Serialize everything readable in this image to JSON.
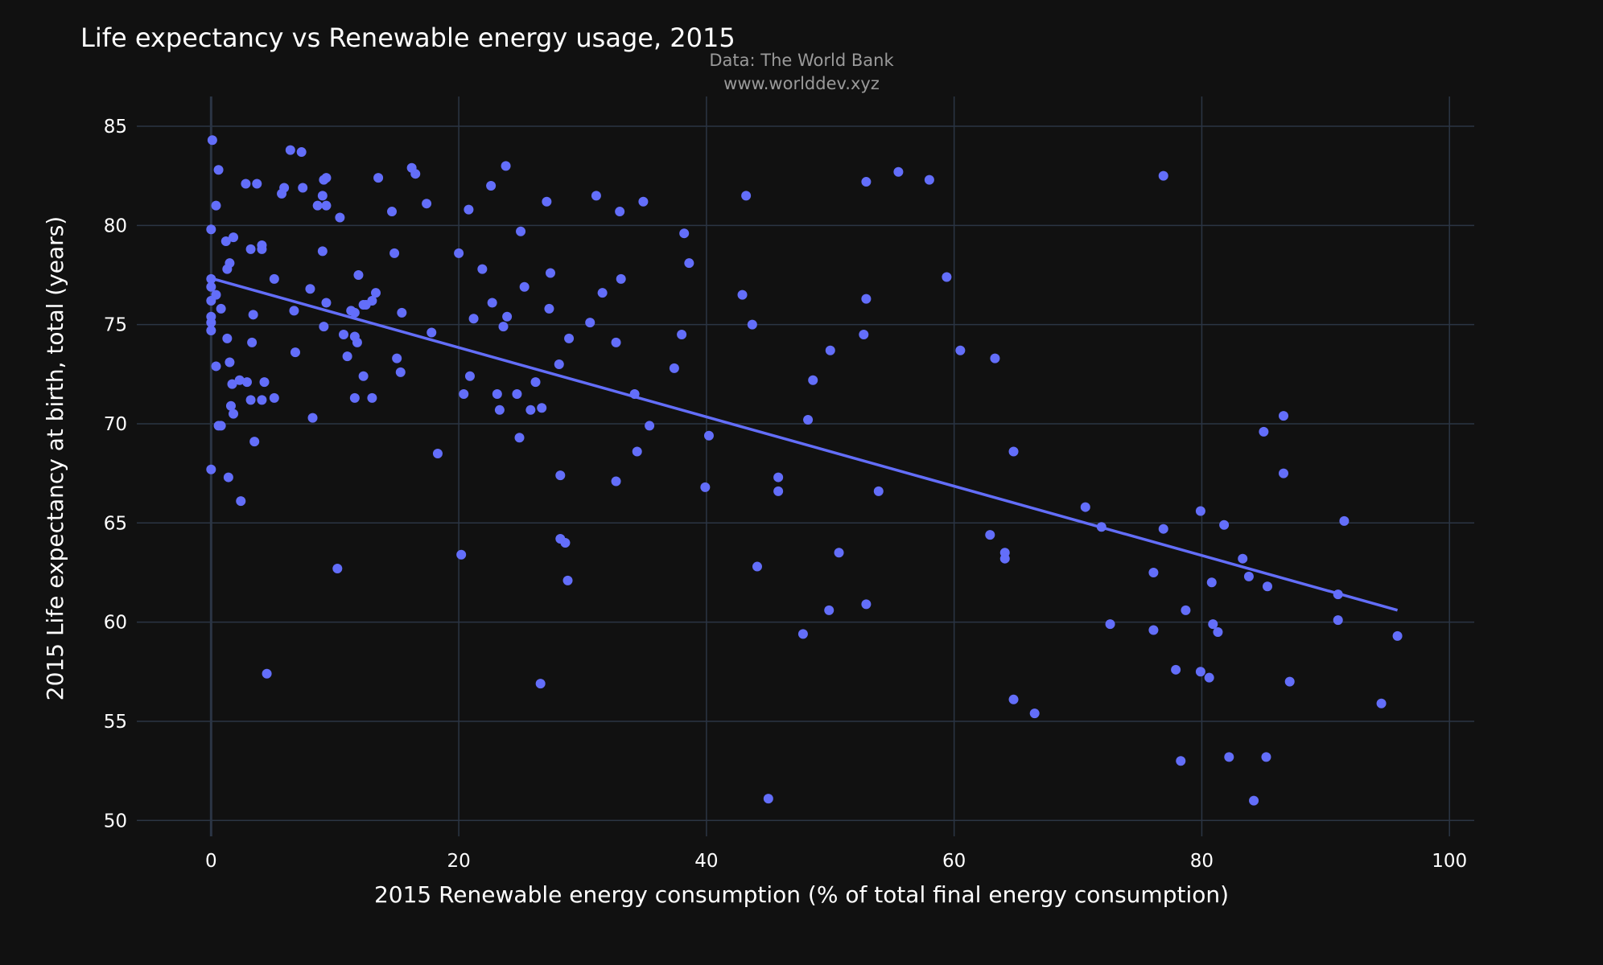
{
  "chart_data": {
    "type": "scatter",
    "title": "Life expectancy vs Renewable energy usage, 2015",
    "source": [
      "Data: The World Bank",
      "www.worlddev.xyz"
    ],
    "xlabel": "2015 Renewable energy consumption (% of total final energy consumption)",
    "ylabel": "2015 Life expectancy at birth, total (years)",
    "xlim": [
      -6,
      102
    ],
    "ylim": [
      49.2,
      86.5
    ],
    "xticks": [
      0,
      20,
      40,
      60,
      80,
      100
    ],
    "yticks": [
      50,
      55,
      60,
      65,
      70,
      75,
      80,
      85
    ],
    "grid": true,
    "colors": {
      "background": "#111111",
      "grid": "#2b3544",
      "marker": "#636efa",
      "trendline": "#636efa"
    },
    "trendline": {
      "x": [
        0.2,
        95.8
      ],
      "y": [
        77.3,
        60.6
      ]
    },
    "points": [
      [
        0.1,
        84.3
      ],
      [
        0.6,
        82.8
      ],
      [
        0.4,
        81.0
      ],
      [
        0.0,
        79.8
      ],
      [
        0.0,
        77.3
      ],
      [
        0.0,
        76.9
      ],
      [
        0.0,
        76.2
      ],
      [
        0.0,
        75.4
      ],
      [
        0.0,
        75.1
      ],
      [
        0.0,
        74.7
      ],
      [
        0.0,
        67.7
      ],
      [
        0.4,
        76.5
      ],
      [
        0.4,
        72.9
      ],
      [
        0.8,
        75.8
      ],
      [
        0.6,
        69.9
      ],
      [
        0.8,
        69.9
      ],
      [
        1.2,
        79.2
      ],
      [
        1.5,
        78.1
      ],
      [
        1.3,
        77.8
      ],
      [
        1.8,
        79.4
      ],
      [
        1.3,
        74.3
      ],
      [
        1.5,
        73.1
      ],
      [
        1.7,
        72.0
      ],
      [
        1.6,
        70.9
      ],
      [
        1.8,
        70.5
      ],
      [
        1.4,
        67.3
      ],
      [
        2.3,
        72.2
      ],
      [
        2.8,
        82.1
      ],
      [
        3.7,
        82.1
      ],
      [
        3.2,
        78.8
      ],
      [
        4.1,
        79.0
      ],
      [
        4.1,
        78.8
      ],
      [
        5.1,
        77.3
      ],
      [
        3.4,
        75.5
      ],
      [
        3.3,
        74.1
      ],
      [
        2.9,
        72.1
      ],
      [
        4.3,
        72.1
      ],
      [
        3.2,
        71.2
      ],
      [
        4.1,
        71.2
      ],
      [
        5.1,
        71.3
      ],
      [
        3.5,
        69.1
      ],
      [
        2.4,
        66.1
      ],
      [
        4.5,
        57.4
      ],
      [
        6.4,
        83.8
      ],
      [
        7.3,
        83.7
      ],
      [
        5.9,
        81.9
      ],
      [
        5.7,
        81.6
      ],
      [
        7.4,
        81.9
      ],
      [
        8.6,
        81.0
      ],
      [
        9.0,
        81.5
      ],
      [
        9.3,
        81.0
      ],
      [
        9.1,
        82.3
      ],
      [
        9.3,
        82.4
      ],
      [
        10.4,
        80.4
      ],
      [
        9.0,
        78.7
      ],
      [
        8.0,
        76.8
      ],
      [
        6.7,
        75.7
      ],
      [
        6.8,
        73.6
      ],
      [
        9.3,
        76.1
      ],
      [
        9.1,
        74.9
      ],
      [
        8.2,
        70.3
      ],
      [
        10.2,
        62.7
      ],
      [
        10.7,
        74.5
      ],
      [
        11.0,
        73.4
      ],
      [
        11.3,
        75.7
      ],
      [
        11.6,
        74.4
      ],
      [
        11.6,
        75.6
      ],
      [
        11.8,
        74.1
      ],
      [
        11.9,
        77.5
      ],
      [
        12.3,
        76.0
      ],
      [
        12.5,
        76.0
      ],
      [
        13.0,
        76.2
      ],
      [
        13.3,
        76.6
      ],
      [
        12.3,
        72.4
      ],
      [
        11.6,
        71.3
      ],
      [
        13.0,
        71.3
      ],
      [
        13.5,
        82.4
      ],
      [
        14.6,
        80.7
      ],
      [
        14.8,
        78.6
      ],
      [
        15.4,
        75.6
      ],
      [
        15.0,
        73.3
      ],
      [
        15.3,
        72.6
      ],
      [
        16.2,
        82.9
      ],
      [
        16.5,
        82.6
      ],
      [
        17.4,
        81.1
      ],
      [
        17.8,
        74.6
      ],
      [
        18.3,
        68.5
      ],
      [
        20.0,
        78.6
      ],
      [
        20.8,
        80.8
      ],
      [
        21.2,
        75.3
      ],
      [
        20.9,
        72.4
      ],
      [
        20.4,
        71.5
      ],
      [
        20.2,
        63.4
      ],
      [
        21.9,
        77.8
      ],
      [
        22.6,
        82.0
      ],
      [
        22.7,
        76.1
      ],
      [
        23.8,
        83.0
      ],
      [
        23.9,
        75.4
      ],
      [
        23.6,
        74.9
      ],
      [
        23.1,
        71.5
      ],
      [
        23.3,
        70.7
      ],
      [
        24.7,
        71.5
      ],
      [
        25.0,
        79.7
      ],
      [
        25.3,
        76.9
      ],
      [
        24.9,
        69.3
      ],
      [
        25.8,
        70.7
      ],
      [
        26.2,
        72.1
      ],
      [
        26.7,
        70.8
      ],
      [
        27.1,
        81.2
      ],
      [
        27.4,
        77.6
      ],
      [
        27.3,
        75.8
      ],
      [
        28.1,
        73.0
      ],
      [
        28.2,
        67.4
      ],
      [
        28.2,
        64.2
      ],
      [
        28.6,
        64.0
      ],
      [
        28.9,
        74.3
      ],
      [
        28.8,
        62.1
      ],
      [
        26.6,
        56.9
      ],
      [
        31.1,
        81.5
      ],
      [
        30.6,
        75.1
      ],
      [
        31.6,
        76.6
      ],
      [
        33.0,
        80.7
      ],
      [
        32.7,
        74.1
      ],
      [
        33.1,
        77.3
      ],
      [
        34.9,
        81.2
      ],
      [
        34.2,
        71.5
      ],
      [
        35.4,
        69.9
      ],
      [
        34.4,
        68.6
      ],
      [
        32.7,
        67.1
      ],
      [
        37.4,
        72.8
      ],
      [
        38.2,
        79.6
      ],
      [
        38.0,
        74.5
      ],
      [
        38.6,
        78.1
      ],
      [
        39.9,
        66.8
      ],
      [
        40.2,
        69.4
      ],
      [
        43.2,
        81.5
      ],
      [
        42.9,
        76.5
      ],
      [
        43.7,
        75.0
      ],
      [
        44.1,
        62.8
      ],
      [
        45.8,
        67.3
      ],
      [
        45.8,
        66.6
      ],
      [
        48.6,
        72.2
      ],
      [
        48.2,
        70.2
      ],
      [
        47.8,
        59.4
      ],
      [
        45.0,
        51.1
      ],
      [
        50.0,
        73.7
      ],
      [
        50.7,
        63.5
      ],
      [
        49.9,
        60.6
      ],
      [
        52.9,
        82.2
      ],
      [
        55.5,
        82.7
      ],
      [
        52.7,
        74.5
      ],
      [
        52.9,
        76.3
      ],
      [
        53.9,
        66.6
      ],
      [
        52.9,
        60.9
      ],
      [
        58.0,
        82.3
      ],
      [
        59.4,
        77.4
      ],
      [
        60.5,
        73.7
      ],
      [
        63.3,
        73.3
      ],
      [
        62.9,
        64.4
      ],
      [
        64.1,
        63.5
      ],
      [
        64.1,
        63.2
      ],
      [
        64.8,
        68.6
      ],
      [
        64.8,
        56.1
      ],
      [
        66.5,
        55.4
      ],
      [
        70.6,
        65.8
      ],
      [
        71.9,
        64.8
      ],
      [
        72.6,
        59.9
      ],
      [
        76.9,
        82.5
      ],
      [
        76.9,
        64.7
      ],
      [
        76.1,
        62.5
      ],
      [
        76.1,
        59.6
      ],
      [
        77.9,
        57.6
      ],
      [
        78.3,
        53.0
      ],
      [
        78.7,
        60.6
      ],
      [
        79.9,
        65.6
      ],
      [
        79.9,
        57.5
      ],
      [
        80.6,
        57.2
      ],
      [
        80.8,
        62.0
      ],
      [
        80.9,
        59.9
      ],
      [
        81.3,
        59.5
      ],
      [
        81.8,
        64.9
      ],
      [
        82.2,
        53.2
      ],
      [
        83.3,
        63.2
      ],
      [
        83.8,
        62.3
      ],
      [
        84.2,
        51.0
      ],
      [
        85.0,
        69.6
      ],
      [
        85.3,
        61.8
      ],
      [
        85.2,
        53.2
      ],
      [
        86.6,
        70.4
      ],
      [
        86.6,
        67.5
      ],
      [
        87.1,
        57.0
      ],
      [
        91.0,
        61.4
      ],
      [
        91.0,
        60.1
      ],
      [
        91.5,
        65.1
      ],
      [
        94.5,
        55.9
      ],
      [
        95.8,
        59.3
      ]
    ]
  }
}
